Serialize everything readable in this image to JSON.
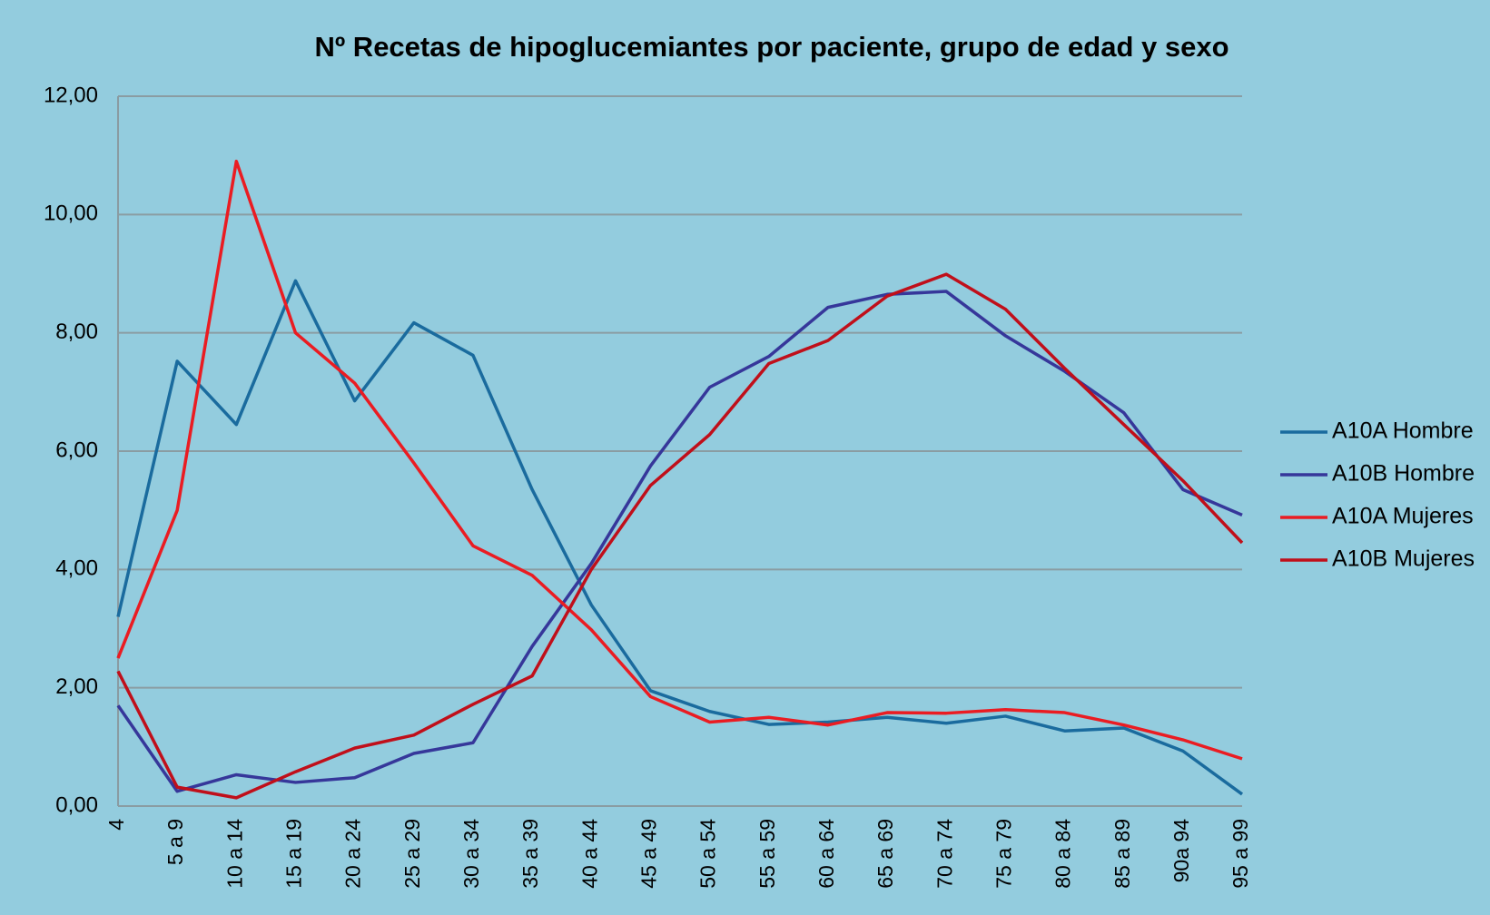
{
  "chart_data": {
    "type": "line",
    "title": "Nº Recetas de hipoglucemiantes por paciente, grupo de edad y sexo",
    "categories": [
      "4",
      "5 a 9",
      "10 a 14",
      "15 a 19",
      "20 a 24",
      "25 a 29",
      "30 a 34",
      "35 a 39",
      "40 a 44",
      "45 a 49",
      "50 a 54",
      "55 a 59",
      "60 a 64",
      "65 a 69",
      "70 a 74",
      "75 a 79",
      "80 a 84",
      "85 a 89",
      "90a 94",
      "95 a 99"
    ],
    "series": [
      {
        "name": "A10A Hombre",
        "color": "#1a6b9e",
        "values": [
          3.2,
          7.52,
          6.45,
          8.88,
          6.85,
          8.17,
          7.62,
          5.35,
          3.4,
          1.95,
          1.6,
          1.38,
          1.42,
          1.5,
          1.4,
          1.52,
          1.27,
          1.32,
          0.93,
          0.2
        ]
      },
      {
        "name": "A10B Hombre",
        "color": "#36379a",
        "values": [
          1.7,
          0.25,
          0.53,
          0.4,
          0.48,
          0.89,
          1.07,
          2.7,
          4.1,
          5.75,
          7.08,
          7.6,
          8.43,
          8.65,
          8.7,
          7.95,
          7.35,
          6.65,
          5.35,
          4.92
        ]
      },
      {
        "name": "A10A Mujeres",
        "color": "#ea1c22",
        "values": [
          2.5,
          5.0,
          10.9,
          8.0,
          7.15,
          5.8,
          4.4,
          3.9,
          2.98,
          1.85,
          1.42,
          1.5,
          1.37,
          1.58,
          1.57,
          1.63,
          1.58,
          1.37,
          1.12,
          0.8
        ]
      },
      {
        "name": "A10B Mujeres",
        "color": "#c00f1a",
        "values": [
          2.28,
          0.32,
          0.14,
          0.58,
          0.98,
          1.2,
          1.72,
          2.2,
          4.0,
          5.42,
          6.28,
          7.48,
          7.87,
          8.62,
          8.99,
          8.4,
          7.4,
          6.45,
          5.5,
          4.45
        ]
      }
    ],
    "ylim": [
      0,
      12
    ],
    "yticks": [
      {
        "value": 0,
        "label": "0,00"
      },
      {
        "value": 2,
        "label": "2,00"
      },
      {
        "value": 4,
        "label": "4,00"
      },
      {
        "value": 6,
        "label": "6,00"
      },
      {
        "value": 8,
        "label": "8,00"
      },
      {
        "value": 10,
        "label": "10,00"
      },
      {
        "value": 12,
        "label": "12,00"
      }
    ],
    "grid": true,
    "legend": "right"
  }
}
